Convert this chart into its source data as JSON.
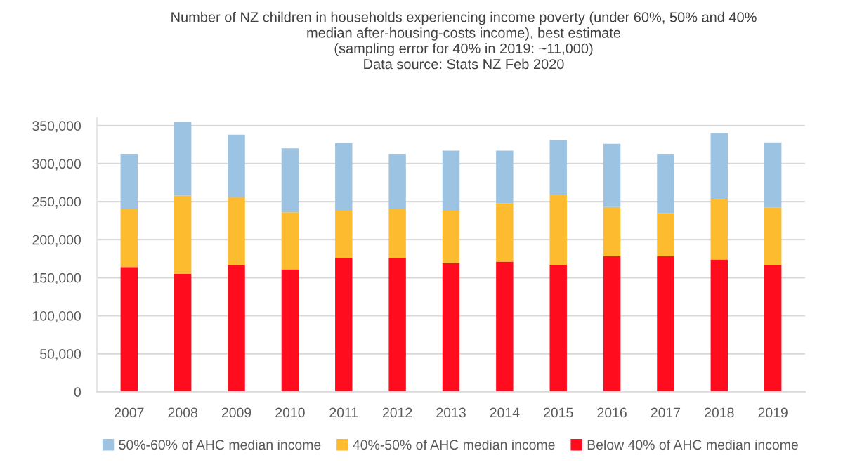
{
  "chart_data": {
    "type": "bar",
    "stacked": true,
    "title": "Number of NZ children in households experiencing income poverty (under 60%, 50% and 40%\nmedian after-housing-costs income), best estimate\n(sampling error for 40% in 2019: ~11,000)\nData source: Stats NZ Feb 2020",
    "categories": [
      "2007",
      "2008",
      "2009",
      "2010",
      "2011",
      "2012",
      "2013",
      "2014",
      "2015",
      "2016",
      "2017",
      "2018",
      "2019"
    ],
    "series": [
      {
        "name": "Below 40% of AHC median income",
        "color": "#ff0d1f",
        "values": [
          164000,
          155000,
          166000,
          161000,
          176000,
          176000,
          169000,
          171000,
          167000,
          178000,
          178000,
          174000,
          167000
        ]
      },
      {
        "name": "40%-50% of AHC median income",
        "color": "#fdbb2f",
        "values": [
          76000,
          103000,
          90000,
          75000,
          62000,
          64000,
          69000,
          77000,
          92000,
          65000,
          57000,
          79000,
          75000
        ]
      },
      {
        "name": "50%-60% of AHC median income",
        "color": "#9dc3e3",
        "values": [
          73000,
          97000,
          82000,
          84000,
          89000,
          73000,
          79000,
          69000,
          72000,
          83000,
          78000,
          87000,
          86000
        ]
      }
    ],
    "ylim": [
      0,
      360000
    ],
    "yticks": [
      {
        "value": 0,
        "label": "0"
      },
      {
        "value": 50000,
        "label": "50,000"
      },
      {
        "value": 100000,
        "label": "100,000"
      },
      {
        "value": 150000,
        "label": "150,000"
      },
      {
        "value": 200000,
        "label": "200,000"
      },
      {
        "value": 250000,
        "label": "250,000"
      },
      {
        "value": 300000,
        "label": "300,000"
      },
      {
        "value": 350000,
        "label": "350,000"
      }
    ],
    "grid": "y",
    "legend": "bottom"
  }
}
